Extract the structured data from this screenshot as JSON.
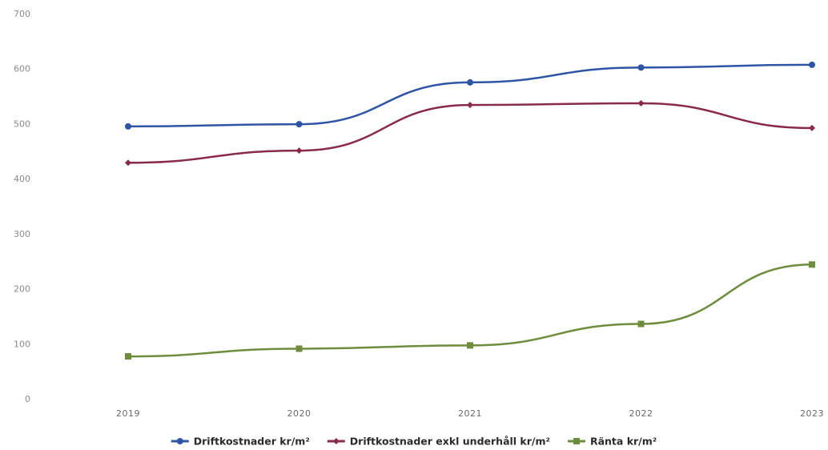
{
  "chart_data": {
    "type": "line",
    "title": "",
    "xlabel": "",
    "ylabel": "",
    "categories": [
      "2019",
      "2020",
      "2021",
      "2022",
      "2023"
    ],
    "ylim": [
      0,
      700
    ],
    "yticks": [
      "0",
      "100",
      "200",
      "300",
      "400",
      "500",
      "600",
      "700"
    ],
    "grid": false,
    "legend_position": "bottom",
    "series": [
      {
        "name": "Driftkostnader kr/m²",
        "color": "#2e55a5",
        "marker": "circle",
        "values": [
          495,
          499,
          575,
          602,
          607
        ]
      },
      {
        "name": "Driftkostnader exkl underhåll kr/m²",
        "color": "#8a2a4a",
        "marker": "diamond",
        "values": [
          429,
          451,
          534,
          537,
          492
        ]
      },
      {
        "name": "Ränta kr/m²",
        "color": "#6e8c3c",
        "marker": "square",
        "values": [
          77,
          91,
          97,
          136,
          244
        ]
      }
    ]
  }
}
